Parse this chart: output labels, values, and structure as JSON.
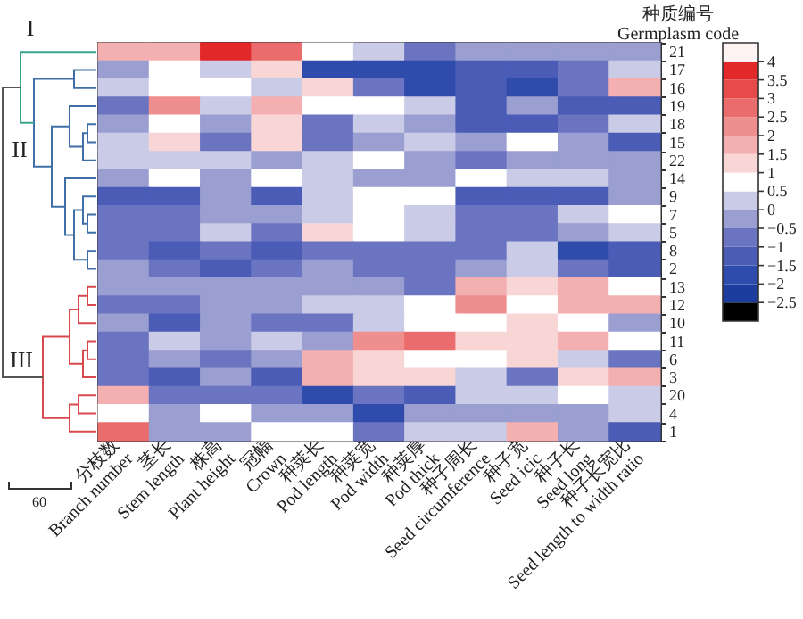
{
  "chart_data": {
    "type": "heatmap",
    "ylabel": "种质编号\nGermplasm code",
    "categories": [
      "分枝数\nBranch number",
      "茎长\nStem length",
      "株高\nPlant height",
      "冠幅\nCrown",
      "种荚长\nPod length",
      "种荚宽\nPod width",
      "种荚厚\nPod thick",
      "种子周长\nSeed circumference",
      "种子宽\nSeed icic",
      "种子长\nSeed long",
      "种子长宽比\nSeed length to width ratio"
    ],
    "y_categories": [
      "21",
      "17",
      "16",
      "19",
      "18",
      "15",
      "22",
      "14",
      "9",
      "7",
      "5",
      "8",
      "2",
      "13",
      "12",
      "10",
      "11",
      "6",
      "3",
      "20",
      "4",
      "1"
    ],
    "cells": [
      [
        1.75,
        1.75,
        3.75,
        2.75,
        0.75,
        0.25,
        -0.75,
        -0.25,
        -0.25,
        -0.25,
        -0.25
      ],
      [
        -0.25,
        0.75,
        0.25,
        1.25,
        -1.75,
        -1.75,
        -1.75,
        -1.25,
        -1.25,
        -0.75,
        0.25
      ],
      [
        0.25,
        0.75,
        0.75,
        0.25,
        1.25,
        -0.75,
        -1.75,
        -1.25,
        -1.75,
        -0.75,
        1.75
      ],
      [
        -0.75,
        2.25,
        0.25,
        1.75,
        0.75,
        0.75,
        0.25,
        -1.25,
        -0.25,
        -1.25,
        -1.25
      ],
      [
        -0.25,
        0.75,
        -0.25,
        1.25,
        -0.75,
        0.25,
        -0.25,
        -1.25,
        -1.25,
        -0.75,
        0.25
      ],
      [
        0.25,
        1.25,
        -0.75,
        1.25,
        -0.75,
        -0.25,
        0.25,
        -0.25,
        0.75,
        -0.25,
        -1.25
      ],
      [
        0.25,
        0.25,
        0.25,
        -0.25,
        0.25,
        0.75,
        -0.25,
        -0.75,
        -0.25,
        -0.25,
        -0.25
      ],
      [
        -0.25,
        0.75,
        -0.25,
        0.75,
        0.25,
        -0.25,
        -0.25,
        0.75,
        0.25,
        0.25,
        -0.25
      ],
      [
        -1.25,
        -1.25,
        -0.25,
        -1.25,
        0.25,
        0.75,
        0.75,
        -1.25,
        -1.25,
        -1.25,
        -0.25
      ],
      [
        -0.75,
        -0.75,
        -0.25,
        -0.25,
        0.25,
        0.75,
        0.25,
        -0.75,
        -0.75,
        0.25,
        0.75
      ],
      [
        -0.75,
        -0.75,
        0.25,
        -0.75,
        1.25,
        0.75,
        0.25,
        -0.75,
        -0.75,
        -0.25,
        0.25
      ],
      [
        -0.75,
        -1.25,
        -0.75,
        -1.25,
        -0.75,
        -0.75,
        -0.75,
        -0.75,
        0.25,
        -1.75,
        -1.25
      ],
      [
        -0.25,
        -0.75,
        -1.25,
        -0.75,
        -0.25,
        -0.75,
        -0.75,
        -0.25,
        0.25,
        -0.75,
        -1.25
      ],
      [
        -0.25,
        -0.25,
        -0.25,
        -0.25,
        -0.25,
        -0.25,
        -0.75,
        1.75,
        1.25,
        1.75,
        0.75
      ],
      [
        -0.75,
        -0.75,
        -0.25,
        -0.25,
        0.25,
        0.25,
        0.75,
        2.25,
        0.75,
        1.75,
        1.75
      ],
      [
        -0.25,
        -1.25,
        -0.25,
        -0.75,
        -0.75,
        0.25,
        0.75,
        0.75,
        1.25,
        0.75,
        -0.25
      ],
      [
        -0.75,
        0.25,
        -0.25,
        0.25,
        -0.25,
        2.25,
        2.75,
        1.25,
        1.25,
        1.75,
        0.75
      ],
      [
        -0.75,
        -0.25,
        -0.75,
        -0.25,
        1.75,
        1.25,
        0.75,
        0.75,
        1.25,
        0.25,
        -0.75
      ],
      [
        -0.75,
        -1.25,
        -0.25,
        -1.25,
        1.75,
        1.25,
        1.25,
        0.25,
        -0.75,
        1.25,
        1.75
      ],
      [
        1.75,
        -0.75,
        -0.75,
        -0.75,
        -1.75,
        -0.75,
        -1.25,
        0.25,
        0.25,
        0.75,
        0.25
      ],
      [
        0.75,
        -0.25,
        0.75,
        -0.25,
        -0.25,
        -1.75,
        -0.25,
        -0.25,
        -0.25,
        -0.25,
        0.25
      ],
      [
        2.75,
        -0.25,
        -0.25,
        0.75,
        0.75,
        -0.75,
        0.25,
        0.25,
        1.75,
        -0.25,
        -1.25
      ]
    ],
    "clim": [
      -3,
      4.5
    ],
    "cticks": [
      -2.5,
      -2.0,
      -1.5,
      -1.0,
      -0.5,
      0,
      0.5,
      1.0,
      1.5,
      2.0,
      2.5,
      3.0,
      3.5,
      4.0
    ],
    "annotations": [
      "I",
      "II",
      "III",
      "60"
    ]
  }
}
